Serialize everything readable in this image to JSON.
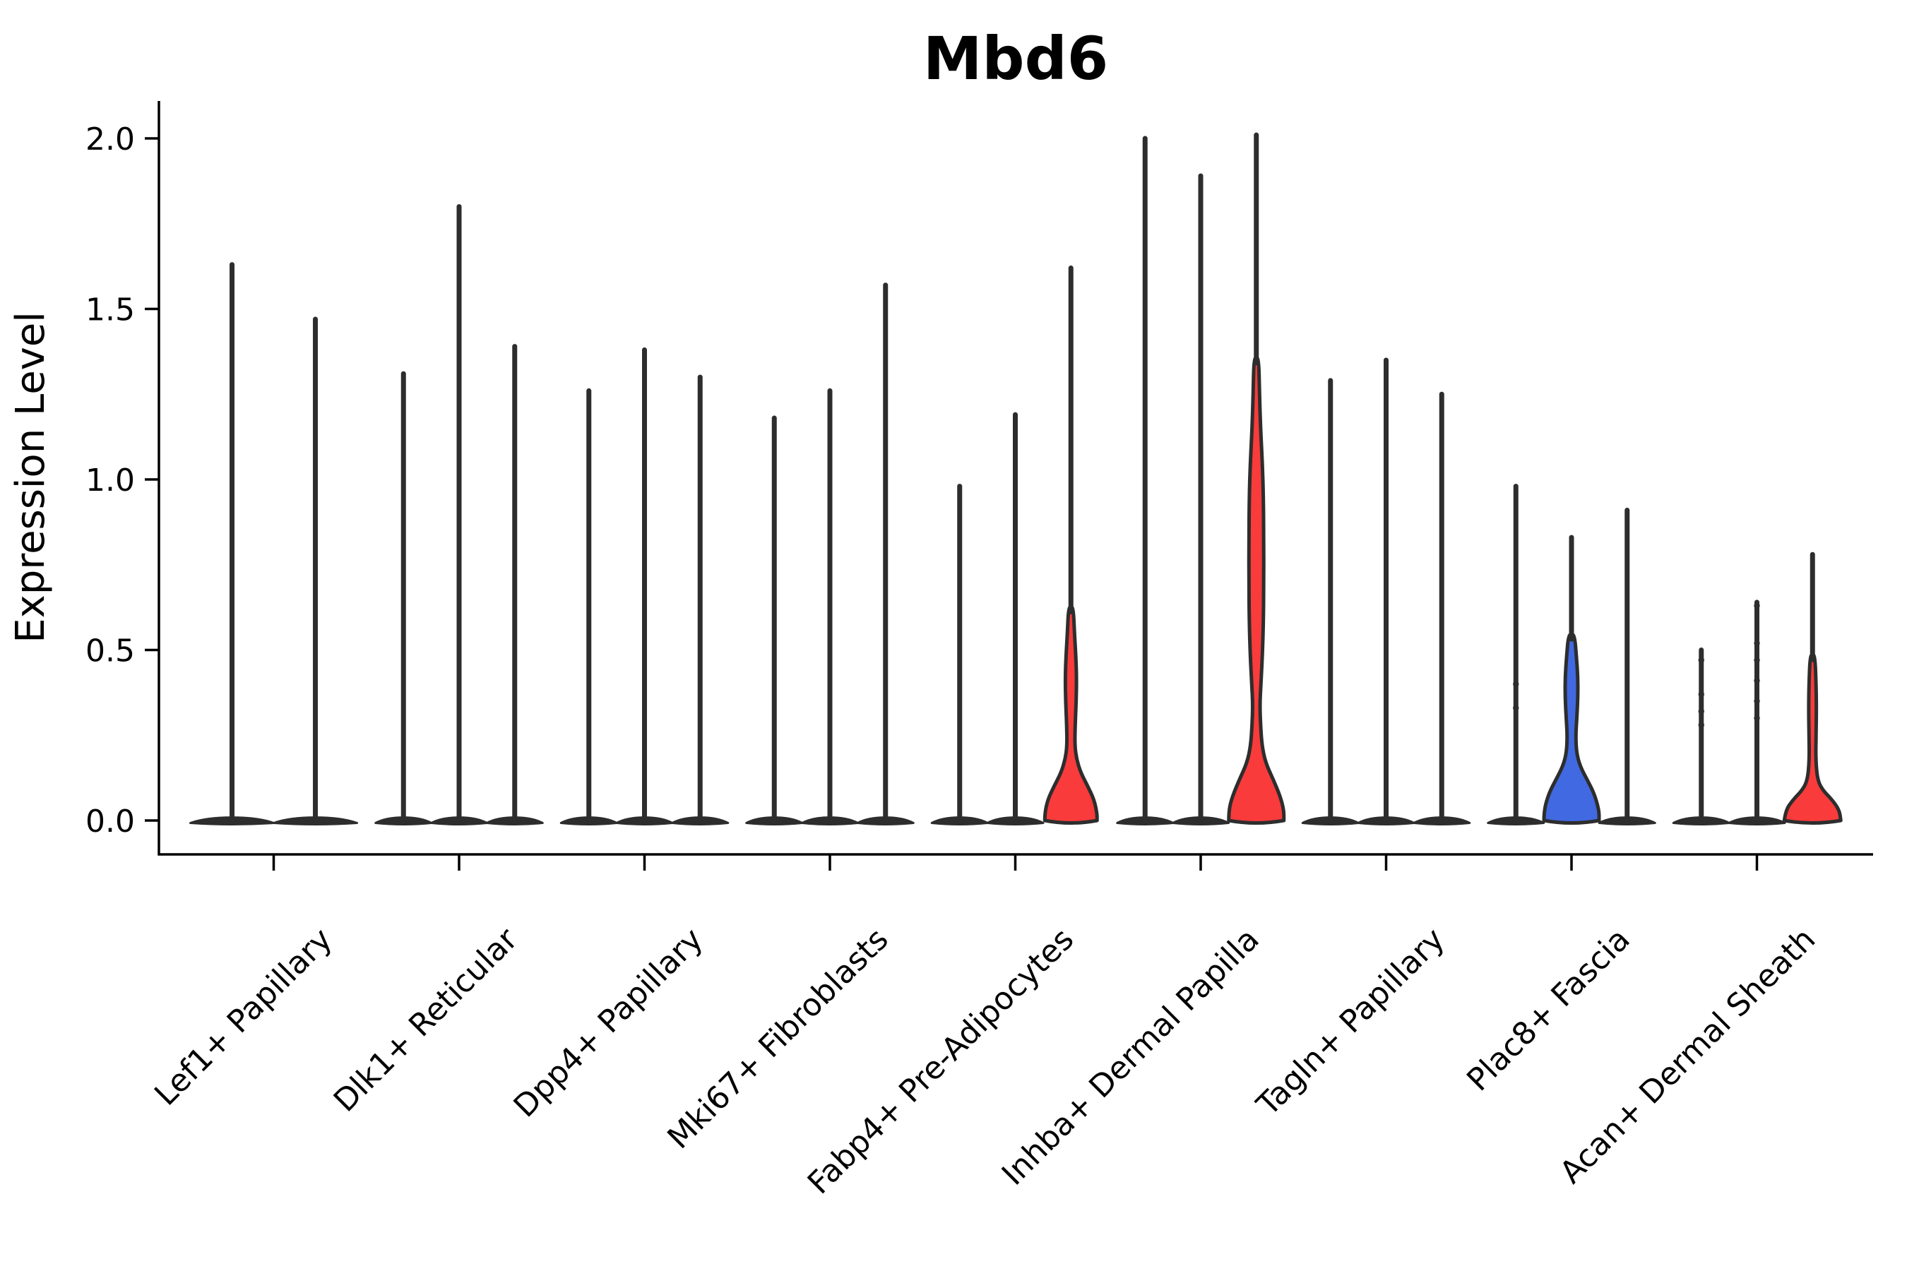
{
  "title": "Mbd6",
  "ylabel": "Expression Level",
  "accent_colors": {
    "red": "#f93b3b",
    "blue": "#4169e1",
    "outline": "#2d2d2d",
    "axis": "#000000"
  },
  "chart_data": {
    "type": "violin",
    "title": "Mbd6",
    "xlabel": "",
    "ylabel": "Expression Level",
    "ylim": [
      0,
      2.1
    ],
    "grid": false,
    "legend": "none",
    "yticks": [
      {
        "label": "0.0",
        "value": 0.0
      },
      {
        "label": "0.5",
        "value": 0.5
      },
      {
        "label": "1.0",
        "value": 1.0
      },
      {
        "label": "1.5",
        "value": 1.5
      },
      {
        "label": "2.0",
        "value": 2.0
      }
    ],
    "categories": [
      "Lef1+ Papillary",
      "Dlk1+ Reticular",
      "Dpp4+ Papillary",
      "Mki67+ Fibroblasts",
      "Fabp4+ Pre-Adipocytes",
      "Inhba+ Dermal Papilla",
      "Tagln+ Papillary",
      "Plac8+ Fascia",
      "Acan+ Dermal Sheath"
    ],
    "groups": [
      {
        "category": "Lef1+ Papillary",
        "violins": [
          {
            "tip": 1.63,
            "fill": "none"
          },
          {
            "tip": 1.47,
            "fill": "none"
          }
        ]
      },
      {
        "category": "Dlk1+ Reticular",
        "violins": [
          {
            "tip": 1.31,
            "fill": "none"
          },
          {
            "tip": 1.8,
            "fill": "none"
          },
          {
            "tip": 1.39,
            "fill": "none"
          }
        ]
      },
      {
        "category": "Dpp4+ Papillary",
        "violins": [
          {
            "tip": 1.26,
            "fill": "none"
          },
          {
            "tip": 1.38,
            "fill": "none"
          },
          {
            "tip": 1.3,
            "fill": "none"
          }
        ]
      },
      {
        "category": "Mki67+ Fibroblasts",
        "violins": [
          {
            "tip": 1.18,
            "fill": "none"
          },
          {
            "tip": 1.26,
            "fill": "none"
          },
          {
            "tip": 1.57,
            "fill": "none"
          }
        ]
      },
      {
        "category": "Fabp4+ Pre-Adipocytes",
        "violins": [
          {
            "tip": 0.98,
            "fill": "none"
          },
          {
            "tip": 1.19,
            "fill": "none"
          },
          {
            "tip": 1.62,
            "fill": "red",
            "profile": [
              [
                0,
                37
              ],
              [
                0.02,
                37
              ],
              [
                0.06,
                33
              ],
              [
                0.1,
                24
              ],
              [
                0.14,
                14
              ],
              [
                0.18,
                8
              ],
              [
                0.22,
                5.5
              ],
              [
                0.28,
                6
              ],
              [
                0.35,
                7.5
              ],
              [
                0.42,
                8
              ],
              [
                0.48,
                7
              ],
              [
                0.55,
                5
              ],
              [
                0.62,
                3.5
              ]
            ]
          }
        ]
      },
      {
        "category": "Inhba+ Dermal Papilla",
        "violins": [
          {
            "tip": 2.0,
            "fill": "none"
          },
          {
            "tip": 1.89,
            "fill": "none"
          },
          {
            "tip": 2.01,
            "fill": "red",
            "profile": [
              [
                0,
                39
              ],
              [
                0.03,
                39
              ],
              [
                0.07,
                34
              ],
              [
                0.12,
                24
              ],
              [
                0.17,
                13
              ],
              [
                0.22,
                8
              ],
              [
                0.28,
                6
              ],
              [
                0.34,
                5
              ],
              [
                0.4,
                6.5
              ],
              [
                0.48,
                8.5
              ],
              [
                0.58,
                10
              ],
              [
                0.7,
                10.5
              ],
              [
                0.82,
                10.5
              ],
              [
                0.95,
                10
              ],
              [
                1.05,
                8.5
              ],
              [
                1.15,
                6
              ],
              [
                1.25,
                4.5
              ],
              [
                1.35,
                3.5
              ]
            ]
          }
        ]
      },
      {
        "category": "Tagln+ Papillary",
        "violins": [
          {
            "tip": 1.29,
            "fill": "none"
          },
          {
            "tip": 1.35,
            "fill": "none"
          },
          {
            "tip": 1.25,
            "fill": "none"
          }
        ]
      },
      {
        "category": "Plac8+ Fascia",
        "violins": [
          {
            "tip": 0.98,
            "fill": "none",
            "points": [
              0.33,
              0.4
            ]
          },
          {
            "tip": 0.83,
            "fill": "blue",
            "profile": [
              [
                0,
                39
              ],
              [
                0.03,
                39
              ],
              [
                0.08,
                32
              ],
              [
                0.12,
                22
              ],
              [
                0.16,
                12
              ],
              [
                0.2,
                7
              ],
              [
                0.25,
                6
              ],
              [
                0.3,
                7.5
              ],
              [
                0.36,
                9
              ],
              [
                0.42,
                9
              ],
              [
                0.48,
                7
              ],
              [
                0.54,
                4.5
              ]
            ]
          },
          {
            "tip": 0.91,
            "fill": "none"
          }
        ]
      },
      {
        "category": "Acan+ Dermal Sheath",
        "violins": [
          {
            "tip": 0.5,
            "fill": "none",
            "points": [
              0.28,
              0.32,
              0.37,
              0.47
            ]
          },
          {
            "tip": 0.64,
            "fill": "none",
            "points": [
              0.3,
              0.35,
              0.41,
              0.47,
              0.52,
              0.63
            ]
          },
          {
            "tip": 0.78,
            "fill": "red",
            "profile": [
              [
                0,
                40
              ],
              [
                0.03,
                38
              ],
              [
                0.06,
                28
              ],
              [
                0.09,
                14
              ],
              [
                0.12,
                7
              ],
              [
                0.18,
                4.5
              ],
              [
                0.25,
                5
              ],
              [
                0.33,
                5.5
              ],
              [
                0.4,
                5
              ],
              [
                0.48,
                3.5
              ]
            ]
          }
        ]
      }
    ]
  }
}
